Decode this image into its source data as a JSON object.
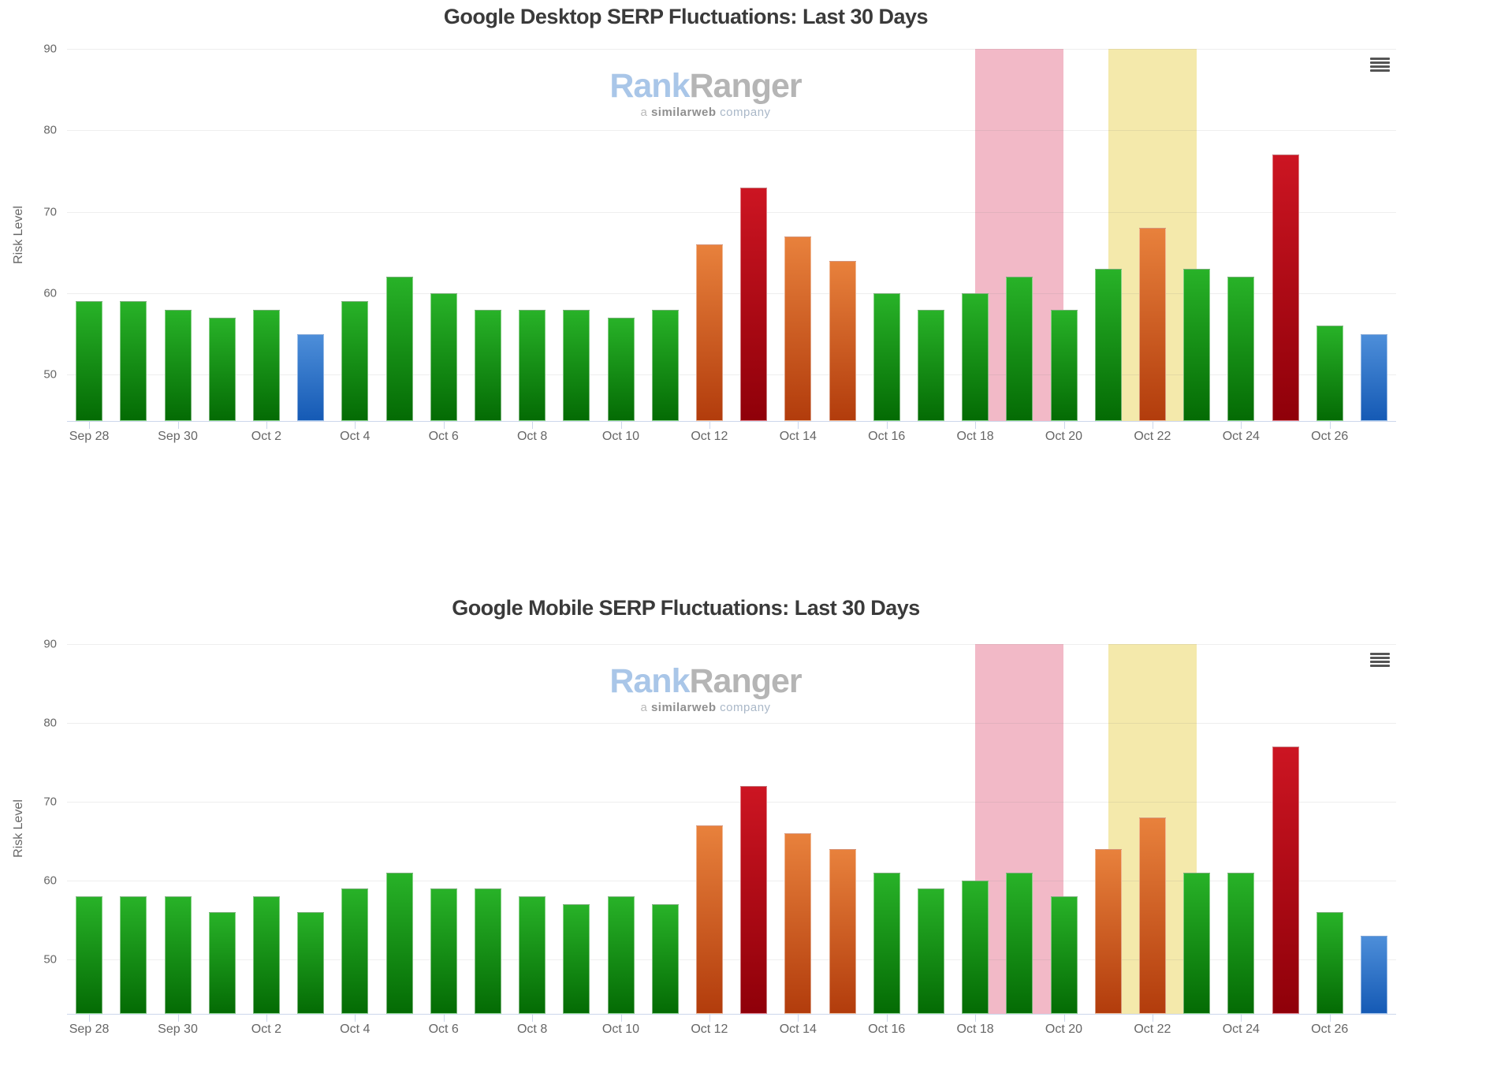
{
  "watermark": {
    "brand_primary": "Rank",
    "brand_secondary": "Ranger",
    "tagline_prefix": "a ",
    "tagline_bold": "similarweb",
    "tagline_suffix": " company"
  },
  "palette": {
    "green_top": "#28b228",
    "green_bottom": "#046b04",
    "blue_top": "#4d8ed9",
    "blue_bottom": "#155ab5",
    "orange_top": "#e8813c",
    "orange_bottom": "#b23c0c",
    "red_top": "#cc1522",
    "red_bottom": "#8f0009",
    "band_pink": "#f2b9c7",
    "band_yellow": "#f4e9ab",
    "axis_line": "#ccd6eb",
    "label_color": "#666666",
    "title_color": "#3a3a3a",
    "menu_icon_color": "#555555"
  },
  "risk_thresholds": {
    "blue_max": 55,
    "green_max": 63,
    "orange_max": 71
  },
  "chart_data": [
    {
      "id": "desktop",
      "type": "bar",
      "title": "Google Desktop SERP Fluctuations: Last 30 Days",
      "ylabel": "Risk Level",
      "ylim": [
        44.3,
        90
      ],
      "yticks": [
        50,
        60,
        70,
        80,
        90
      ],
      "grid": true,
      "legend": "none",
      "categories": [
        "Sep 28",
        "Sep 29",
        "Sep 30",
        "Oct 1",
        "Oct 2",
        "Oct 3",
        "Oct 4",
        "Oct 5",
        "Oct 6",
        "Oct 7",
        "Oct 8",
        "Oct 9",
        "Oct 10",
        "Oct 11",
        "Oct 12",
        "Oct 13",
        "Oct 14",
        "Oct 15",
        "Oct 16",
        "Oct 17",
        "Oct 18",
        "Oct 19",
        "Oct 20",
        "Oct 21",
        "Oct 22",
        "Oct 23",
        "Oct 24",
        "Oct 25",
        "Oct 26",
        "Oct 27"
      ],
      "x_tick_labels": [
        "Sep 28",
        "Sep 30",
        "Oct 2",
        "Oct 4",
        "Oct 6",
        "Oct 8",
        "Oct 10",
        "Oct 12",
        "Oct 14",
        "Oct 16",
        "Oct 18",
        "Oct 20",
        "Oct 22",
        "Oct 24",
        "Oct 26"
      ],
      "values": [
        59,
        59,
        58,
        57,
        58,
        55,
        59,
        62,
        60,
        58,
        58,
        58,
        57,
        58,
        66,
        73,
        67,
        64,
        60,
        58,
        60,
        62,
        58,
        63,
        68,
        63,
        62,
        77,
        56,
        55
      ],
      "plot_bands": [
        {
          "from_category": "Oct 18",
          "to_category": "Oct 20",
          "color_key": "band_pink"
        },
        {
          "from_category": "Oct 21",
          "to_category": "Oct 23",
          "color_key": "band_yellow"
        }
      ]
    },
    {
      "id": "mobile",
      "type": "bar",
      "title": "Google Mobile SERP Fluctuations: Last 30 Days",
      "ylabel": "Risk Level",
      "ylim": [
        43.1,
        90
      ],
      "yticks": [
        50,
        60,
        70,
        80,
        90
      ],
      "grid": true,
      "legend": "none",
      "categories": [
        "Sep 28",
        "Sep 29",
        "Sep 30",
        "Oct 1",
        "Oct 2",
        "Oct 3",
        "Oct 4",
        "Oct 5",
        "Oct 6",
        "Oct 7",
        "Oct 8",
        "Oct 9",
        "Oct 10",
        "Oct 11",
        "Oct 12",
        "Oct 13",
        "Oct 14",
        "Oct 15",
        "Oct 16",
        "Oct 17",
        "Oct 18",
        "Oct 19",
        "Oct 20",
        "Oct 21",
        "Oct 22",
        "Oct 23",
        "Oct 24",
        "Oct 25",
        "Oct 26",
        "Oct 27"
      ],
      "x_tick_labels": [
        "Sep 28",
        "Sep 30",
        "Oct 2",
        "Oct 4",
        "Oct 6",
        "Oct 8",
        "Oct 10",
        "Oct 12",
        "Oct 14",
        "Oct 16",
        "Oct 18",
        "Oct 20",
        "Oct 22",
        "Oct 24",
        "Oct 26"
      ],
      "values": [
        58,
        58,
        58,
        56,
        58,
        56,
        59,
        61,
        59,
        59,
        58,
        57,
        58,
        57,
        67,
        72,
        66,
        64,
        61,
        59,
        60,
        61,
        58,
        64,
        68,
        61,
        61,
        77,
        56,
        53
      ],
      "plot_bands": [
        {
          "from_category": "Oct 18",
          "to_category": "Oct 20",
          "color_key": "band_pink"
        },
        {
          "from_category": "Oct 21",
          "to_category": "Oct 23",
          "color_key": "band_yellow"
        }
      ]
    }
  ]
}
